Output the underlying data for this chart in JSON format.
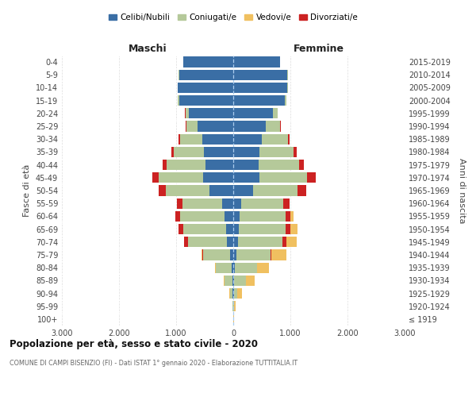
{
  "age_groups": [
    "100+",
    "95-99",
    "90-94",
    "85-89",
    "80-84",
    "75-79",
    "70-74",
    "65-69",
    "60-64",
    "55-59",
    "50-54",
    "45-49",
    "40-44",
    "35-39",
    "30-34",
    "25-29",
    "20-24",
    "15-19",
    "10-14",
    "5-9",
    "0-4"
  ],
  "birth_years": [
    "≤ 1919",
    "1920-1924",
    "1925-1929",
    "1930-1934",
    "1935-1939",
    "1940-1944",
    "1945-1949",
    "1950-1954",
    "1955-1959",
    "1960-1964",
    "1965-1969",
    "1970-1974",
    "1975-1979",
    "1980-1984",
    "1985-1989",
    "1990-1994",
    "1995-1999",
    "2000-2004",
    "2005-2009",
    "2010-2014",
    "2015-2019"
  ],
  "maschi": {
    "celibi": [
      2,
      5,
      10,
      20,
      30,
      60,
      110,
      130,
      150,
      200,
      420,
      530,
      480,
      510,
      540,
      620,
      780,
      950,
      970,
      950,
      870
    ],
    "coniugati": [
      2,
      10,
      50,
      130,
      270,
      470,
      680,
      750,
      780,
      690,
      760,
      770,
      680,
      530,
      390,
      200,
      60,
      20,
      5,
      3,
      2
    ],
    "vedovi": [
      0,
      0,
      5,
      10,
      20,
      30,
      20,
      15,
      10,
      5,
      5,
      3,
      2,
      2,
      1,
      0,
      0,
      0,
      0,
      0,
      0
    ],
    "divorziati": [
      0,
      0,
      2,
      5,
      5,
      15,
      70,
      80,
      80,
      100,
      120,
      120,
      70,
      50,
      30,
      10,
      2,
      0,
      0,
      0,
      0
    ]
  },
  "femmine": {
    "nubili": [
      2,
      5,
      10,
      20,
      30,
      50,
      80,
      100,
      110,
      140,
      350,
      460,
      440,
      460,
      500,
      570,
      700,
      900,
      950,
      950,
      820
    ],
    "coniugate": [
      3,
      15,
      60,
      200,
      380,
      600,
      780,
      820,
      810,
      740,
      780,
      830,
      710,
      600,
      460,
      250,
      80,
      25,
      5,
      3,
      2
    ],
    "vedove": [
      2,
      20,
      80,
      150,
      220,
      280,
      250,
      200,
      130,
      80,
      70,
      60,
      30,
      20,
      10,
      5,
      2,
      0,
      0,
      0,
      0
    ],
    "divorziate": [
      0,
      0,
      2,
      5,
      10,
      20,
      70,
      80,
      80,
      110,
      150,
      160,
      80,
      50,
      30,
      10,
      2,
      0,
      0,
      0,
      0
    ]
  },
  "colors": {
    "celibi": "#3a6ea5",
    "coniugati": "#b5c99a",
    "vedovi": "#f0c060",
    "divorziati": "#cc2222"
  },
  "xlim": 3000,
  "xtick_vals": [
    -3000,
    -2000,
    -1000,
    0,
    1000,
    2000,
    3000
  ],
  "xtick_labels": [
    "3.000",
    "2.000",
    "1.000",
    "0",
    "1.000",
    "2.000",
    "3.000"
  ],
  "title": "Popolazione per età, sesso e stato civile - 2020",
  "subtitle": "COMUNE DI CAMPI BISENZIO (FI) - Dati ISTAT 1° gennaio 2020 - Elaborazione TUTTITALIA.IT",
  "legend_labels": [
    "Celibi/Nubili",
    "Coniugati/e",
    "Vedovi/e",
    "Divorziati/e"
  ],
  "ylabel_left": "Fasce di età",
  "ylabel_right": "Anni di nascita",
  "maschi_label": "Maschi",
  "femmine_label": "Femmine"
}
